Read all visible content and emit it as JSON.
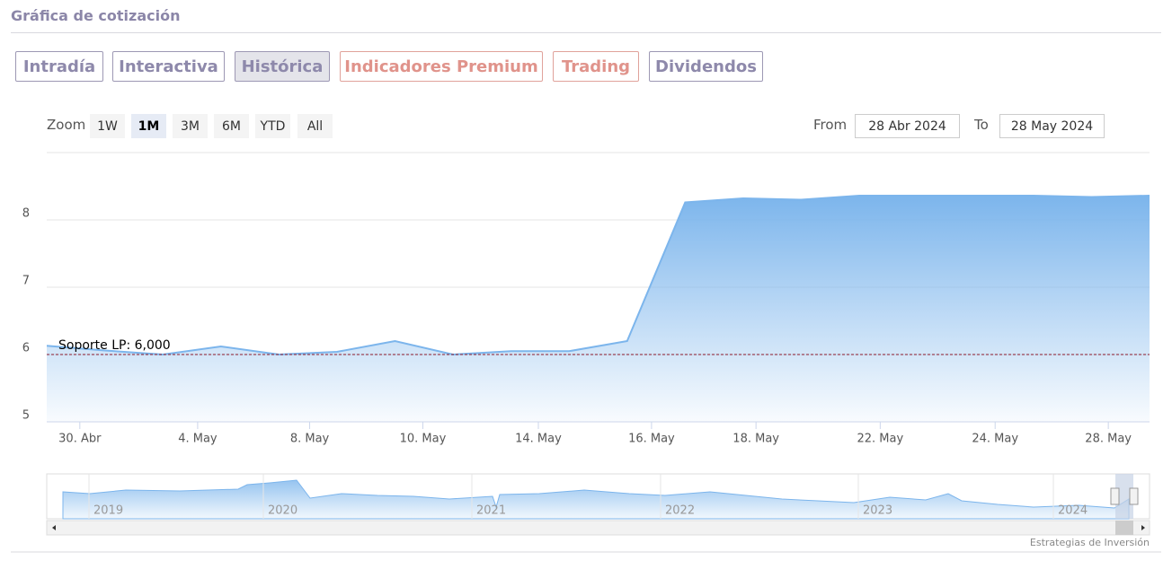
{
  "header": {
    "title": "Gráfica de cotización"
  },
  "tabs": [
    "Intradía",
    "Interactiva",
    "Histórica",
    "Indicadores Premium",
    "Trading",
    "Dividendos"
  ],
  "zoom": {
    "label": "Zoom",
    "buttons": [
      "1W",
      "1M",
      "3M",
      "6M",
      "YTD",
      "All"
    ]
  },
  "range": {
    "from_label": "From",
    "from": "28 Abr 2024",
    "to_label": "To",
    "to": "28 May 2024"
  },
  "chart_data": {
    "type": "area",
    "color": "#7cb5ec",
    "x": [
      0,
      1,
      2,
      3,
      4,
      5,
      6,
      7,
      8,
      9,
      10,
      11,
      12,
      13,
      14,
      15,
      16,
      17,
      18,
      19
    ],
    "values": [
      6.13,
      6.06,
      6.0,
      6.12,
      6.0,
      6.04,
      6.2,
      6.0,
      6.05,
      6.05,
      6.2,
      8.26,
      8.32,
      8.3,
      8.36,
      8.36,
      8.36,
      8.36,
      8.34,
      8.36
    ],
    "xlim": [
      0,
      19
    ],
    "ylim": [
      5,
      9
    ],
    "yticks": [
      5,
      6,
      7,
      8
    ],
    "grid": true,
    "xticks": [
      {
        "value": 0.57,
        "label": "30. Abr"
      },
      {
        "value": 2.6,
        "label": "4. May"
      },
      {
        "value": 4.53,
        "label": "8. May"
      },
      {
        "value": 6.48,
        "label": "10. May"
      },
      {
        "value": 8.47,
        "label": "14. May"
      },
      {
        "value": 10.42,
        "label": "16. May"
      },
      {
        "value": 12.22,
        "label": "18. May"
      },
      {
        "value": 14.36,
        "label": "22. May"
      },
      {
        "value": 16.34,
        "label": "24. May"
      },
      {
        "value": 18.29,
        "label": "28. May"
      }
    ],
    "plot_line": {
      "value": 6,
      "label": "Soporte LP: 6,000",
      "color": "#8b1a2b"
    }
  },
  "navigator": {
    "years": [
      "2019",
      "2020",
      "2021",
      "2022",
      "2023",
      "2024"
    ]
  },
  "credit": "Estrategias de Inversión"
}
